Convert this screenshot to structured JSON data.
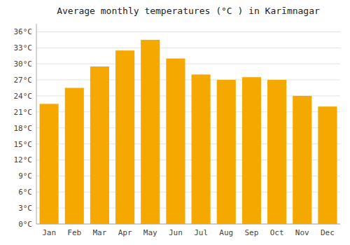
{
  "chart_data": {
    "type": "bar",
    "title": "Average monthly temperatures (°C ) in Karīmnagar",
    "categories": [
      "Jan",
      "Feb",
      "Mar",
      "Apr",
      "May",
      "Jun",
      "Jul",
      "Aug",
      "Sep",
      "Oct",
      "Nov",
      "Dec"
    ],
    "values": [
      22.5,
      25.5,
      29.5,
      32.5,
      34.5,
      31.0,
      28.0,
      27.0,
      27.5,
      27.0,
      24.0,
      22.0
    ],
    "color": "#F5A800",
    "ylim": [
      0,
      37.5
    ],
    "yticks": [
      {
        "value": 0,
        "label": "0°C"
      },
      {
        "value": 3,
        "label": "3°C"
      },
      {
        "value": 6,
        "label": "6°C"
      },
      {
        "value": 9,
        "label": "9°C"
      },
      {
        "value": 12,
        "label": "12°C"
      },
      {
        "value": 15,
        "label": "15°C"
      },
      {
        "value": 18,
        "label": "18°C"
      },
      {
        "value": 21,
        "label": "21°C"
      },
      {
        "value": 24,
        "label": "24°C"
      },
      {
        "value": 27,
        "label": "27°C"
      },
      {
        "value": 30,
        "label": "30°C"
      },
      {
        "value": 33,
        "label": "33°C"
      },
      {
        "value": 36,
        "label": "36°C"
      }
    ],
    "grid": true
  }
}
